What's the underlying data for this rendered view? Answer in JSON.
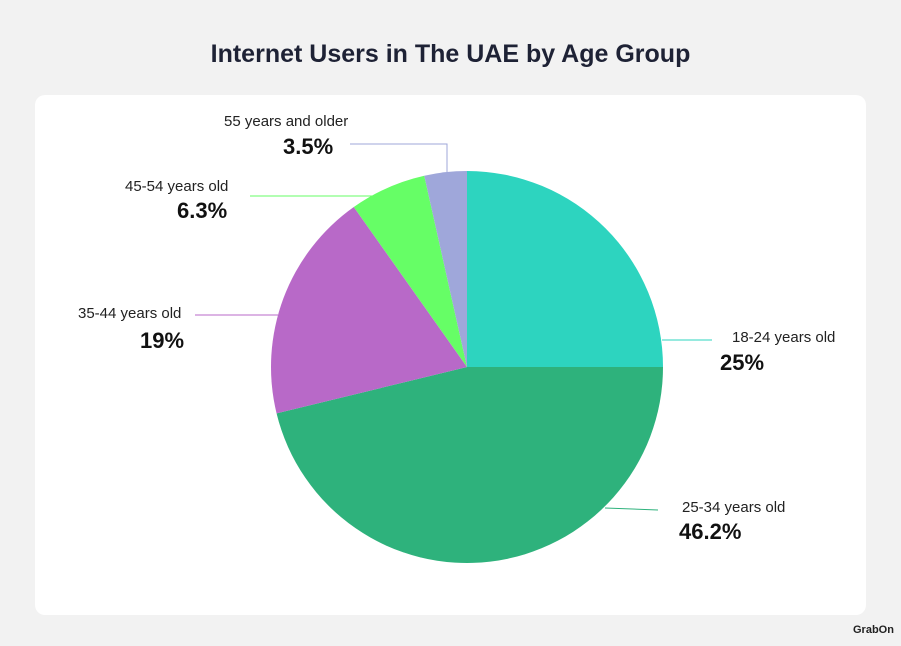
{
  "chart_data": {
    "type": "pie",
    "title": "Internet Users in The UAE by Age Group",
    "slices": [
      {
        "label": "18-24 years old",
        "value": 25,
        "display": "25%",
        "color": "#2dd4bf"
      },
      {
        "label": "25-34 years old",
        "value": 46.2,
        "display": "46.2%",
        "color": "#2eb27c"
      },
      {
        "label": "35-44 years old",
        "value": 19,
        "display": "19%",
        "color": "#b869c8"
      },
      {
        "label": "45-54 years old",
        "value": 6.3,
        "display": "6.3%",
        "color": "#66fe66"
      },
      {
        "label": "55 years and older",
        "value": 3.5,
        "display": "3.5%",
        "color": "#9fa7da"
      }
    ],
    "start_angle": "12 o'clock",
    "direction": "clockwise"
  },
  "logo": "GrabOn"
}
